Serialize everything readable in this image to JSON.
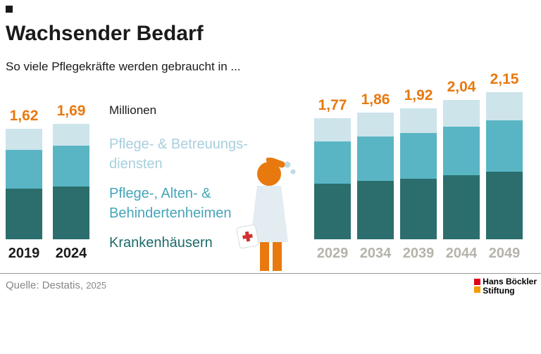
{
  "chart_data": {
    "type": "bar",
    "stacked": true,
    "title": "Wachsender Bedarf",
    "subtitle": "So viele Pflegekräfte werden gebraucht in ...",
    "unit": "Millionen",
    "categories": [
      "2019",
      "2024",
      "2029",
      "2034",
      "2039",
      "2044",
      "2049"
    ],
    "values": [
      1.62,
      1.69,
      1.77,
      1.86,
      1.92,
      2.04,
      2.15
    ],
    "value_labels": [
      "1,62",
      "1,69",
      "1,77",
      "1,86",
      "1,92",
      "2,04",
      "2,15"
    ],
    "past_count": 2,
    "segments": [
      {
        "key": "krankenhaeuser",
        "label": "Krankenhäusern",
        "color": "#2b6e6d",
        "fraction": 0.46
      },
      {
        "key": "heime",
        "label": "Pflege-, Alten- & Behindertenheimen",
        "color": "#59b5c4",
        "fraction": 0.35
      },
      {
        "key": "dienste",
        "label": "Pflege- & Betreuungsdiensten",
        "color": "#cde4eb",
        "fraction": 0.19
      }
    ],
    "ylim": [
      0,
      2.3
    ],
    "gridlines": false,
    "legend_position": "center-left"
  },
  "legend": {
    "unit": "Millionen",
    "items": [
      {
        "key": "dienste",
        "lines": [
          "Pflege- & Betreuungs-",
          "diensten"
        ],
        "color": "#a7cfdd"
      },
      {
        "key": "heime",
        "lines": [
          "Pflege-, Alten- &",
          "Behindertenheimen"
        ],
        "color": "#45a5b8"
      },
      {
        "key": "krankenhaeuser",
        "lines": [
          "Krankenhäusern"
        ],
        "color": "#1d6b6b"
      }
    ]
  },
  "footer": {
    "source": "Quelle: Destatis,",
    "year": "2025",
    "logo": {
      "line1": "Hans Böckler",
      "line2": "Stiftung",
      "red": "#e2001a",
      "orange": "#f59b00"
    }
  },
  "palette": {
    "accent_orange": "#e8790f",
    "teal_dark": "#2b6e6d",
    "teal_mid": "#59b5c4",
    "blue_light": "#cde4eb",
    "year_future_gray": "#b6b3aa",
    "text_black": "#1a1a1a",
    "source_gray": "#878787"
  }
}
